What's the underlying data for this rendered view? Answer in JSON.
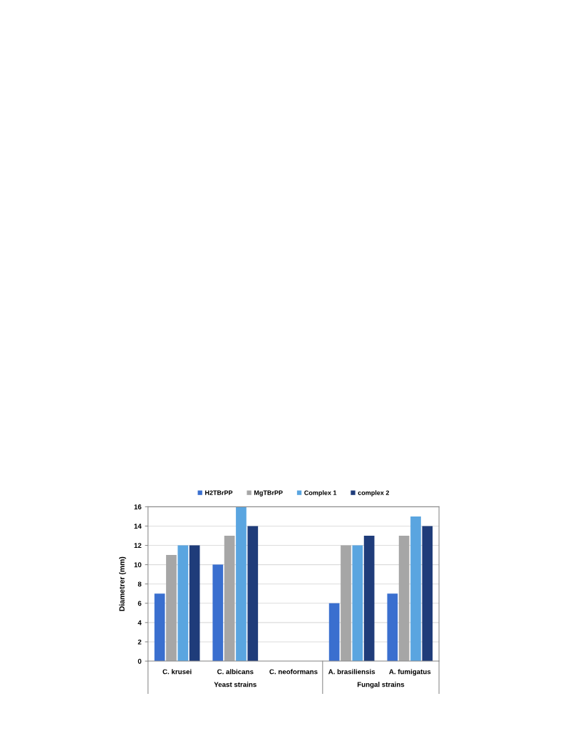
{
  "chart_data": {
    "type": "bar",
    "categories": [
      "C. krusei",
      "C. albicans",
      "C. neoformans",
      "A. brasiliensis",
      "A. fumigatus"
    ],
    "series": [
      {
        "name": "H2TBrPP",
        "color": "#3a6fcf",
        "values": [
          7,
          10,
          0,
          6,
          7
        ]
      },
      {
        "name": "MgTBrPP",
        "color": "#a6a6a6",
        "values": [
          11,
          13,
          0,
          12,
          13
        ]
      },
      {
        "name": "Complex 1",
        "color": "#5aa5e0",
        "values": [
          12,
          16,
          0,
          12,
          15
        ]
      },
      {
        "name": "complex 2",
        "color": "#1f3c7a",
        "values": [
          12,
          14,
          0,
          13,
          14
        ]
      }
    ],
    "ylabel": "Diametrer (mm)",
    "ylim": [
      0,
      16
    ],
    "yticks": [
      0,
      2,
      4,
      6,
      8,
      10,
      12,
      14,
      16
    ],
    "grid": "y",
    "legend": "top",
    "annotations": [
      "Yeast strains",
      "Fungal strains"
    ]
  }
}
